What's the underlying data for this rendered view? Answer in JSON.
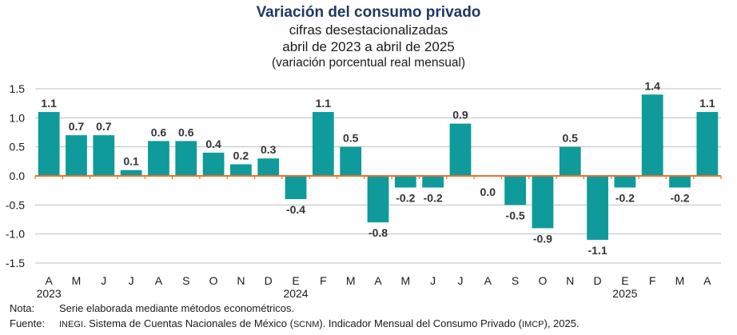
{
  "header": {
    "title": "Variación del consumo privado",
    "subtitle1": "cifras desestacionalizadas",
    "subtitle2": "abril de 2023 a abril de 2025",
    "subtitle3": "(variación porcentual real mensual)"
  },
  "colors": {
    "bar": "#0f9a9b",
    "axis": "#e8732a",
    "grid": "#bfbfbf",
    "title": "#1f3864"
  },
  "chart_data": {
    "type": "bar",
    "categories": [
      "A",
      "M",
      "J",
      "J",
      "A",
      "S",
      "O",
      "N",
      "D",
      "E",
      "F",
      "M",
      "A",
      "M",
      "J",
      "J",
      "A",
      "S",
      "O",
      "N",
      "D",
      "E",
      "F",
      "M",
      "A"
    ],
    "values": [
      1.1,
      0.7,
      0.7,
      0.1,
      0.6,
      0.6,
      0.4,
      0.2,
      0.3,
      -0.4,
      1.1,
      0.5,
      -0.8,
      -0.2,
      -0.2,
      0.9,
      0.0,
      -0.5,
      -0.9,
      0.5,
      -1.1,
      -0.2,
      1.4,
      -0.2,
      1.1
    ],
    "data_labels": [
      "1.1",
      "0.7",
      "0.7",
      "0.1",
      "0.6",
      "0.6",
      "0.4",
      "0.2",
      "0.3",
      "-0.4",
      "1.1",
      "0.5",
      "-0.8",
      "-0.2",
      "-0.2",
      "0.9",
      "0.0",
      "-0.5",
      "-0.9",
      "0.5",
      "-1.1",
      "-0.2",
      "1.4",
      "-0.2",
      "1.1"
    ],
    "year_labels": [
      {
        "index": 0,
        "label": "2023"
      },
      {
        "index": 9,
        "label": "2024"
      },
      {
        "index": 21,
        "label": "2025"
      }
    ],
    "ylim": [
      -1.5,
      1.5
    ],
    "yticks": [
      1.5,
      1.0,
      0.5,
      0.0,
      -0.5,
      -1.0,
      -1.5
    ],
    "ytick_labels": [
      "1.5",
      "1.0",
      "0.5",
      "0.0",
      "-0.5",
      "-1.0",
      "-1.5"
    ],
    "grid": true,
    "xlabel": "",
    "ylabel": ""
  },
  "notes": {
    "nota_label": "Nota:",
    "nota_text": "Serie elaborada mediante métodos econométricos.",
    "fuente_label": "Fuente:",
    "fuente_inegi": "INEGI",
    "fuente_text1": ". Sistema de Cuentas Nacionales de México (",
    "fuente_scnm": "SCNM",
    "fuente_text2": "). Indicador Mensual del Consumo Privado (",
    "fuente_imcp": "IMCP",
    "fuente_text3": "), 2025."
  }
}
